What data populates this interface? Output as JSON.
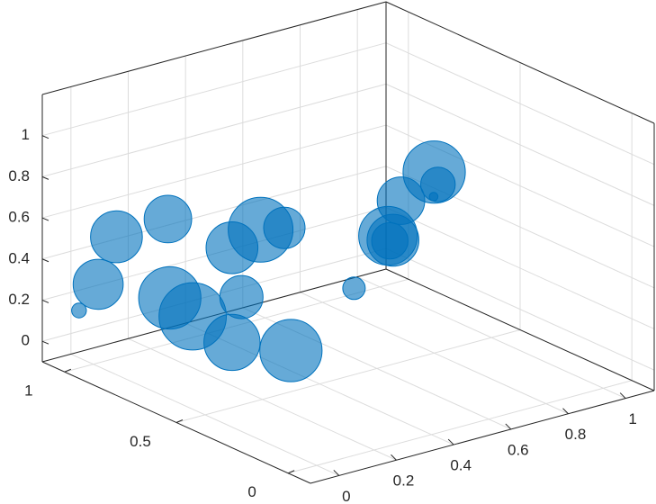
{
  "chart_data": {
    "type": "scatter",
    "style": "3d-bubble",
    "color": "#0072BD",
    "fill_opacity": 0.6,
    "grid": true,
    "xlim": [
      -0.1,
      1.1
    ],
    "ylim": [
      -0.1,
      1.1
    ],
    "zlim": [
      -0.1,
      1.2
    ],
    "x_ticks": [
      {
        "value": 0,
        "label": "0"
      },
      {
        "value": 0.2,
        "label": "0.2"
      },
      {
        "value": 0.4,
        "label": "0.4"
      },
      {
        "value": 0.6,
        "label": "0.6"
      },
      {
        "value": 0.8,
        "label": "0.8"
      },
      {
        "value": 1,
        "label": "1"
      }
    ],
    "y_ticks": [
      {
        "value": 0,
        "label": "0"
      },
      {
        "value": 0.5,
        "label": "0.5"
      },
      {
        "value": 1,
        "label": "1"
      }
    ],
    "z_ticks": [
      {
        "value": 0,
        "label": "0"
      },
      {
        "value": 0.2,
        "label": "0.2"
      },
      {
        "value": 0.4,
        "label": "0.4"
      },
      {
        "value": 0.6,
        "label": "0.6"
      },
      {
        "value": 0.8,
        "label": "0.8"
      },
      {
        "value": 1,
        "label": "1"
      }
    ],
    "points": [
      {
        "x": 0.45,
        "y": 0.2,
        "z": 0.92,
        "size": 0.55
      },
      {
        "x": 0.54,
        "y": 0.15,
        "z": 0.99,
        "size": 0.4
      },
      {
        "x": 0.8,
        "y": 0.5,
        "z": 0.78,
        "size": 0.72
      },
      {
        "x": 0.5,
        "y": 0.3,
        "z": 0.66,
        "size": 0.6
      },
      {
        "x": 0.72,
        "y": 0.4,
        "z": 0.74,
        "size": 0.1
      },
      {
        "x": 0.6,
        "y": 0.45,
        "z": 0.57,
        "size": 0.68
      },
      {
        "x": 0.45,
        "y": 0.25,
        "z": 0.7,
        "size": 0.42
      },
      {
        "x": 0.52,
        "y": 0.5,
        "z": 0.32,
        "size": 0.26
      },
      {
        "x": 0.05,
        "y": 0.73,
        "z": 0.72,
        "size": 0.55
      },
      {
        "x": 0.35,
        "y": 0.7,
        "z": 0.57,
        "size": 0.75
      },
      {
        "x": 0.25,
        "y": 0.7,
        "z": 0.52,
        "size": 0.6
      },
      {
        "x": 0.55,
        "y": 0.85,
        "z": 0.43,
        "size": 0.48
      },
      {
        "x": 0.15,
        "y": 0.85,
        "z": 0.24,
        "size": 0.72
      },
      {
        "x": 0.4,
        "y": 0.85,
        "z": 0.15,
        "size": 0.5
      },
      {
        "x": 0.12,
        "y": 1.05,
        "z": 0.45,
        "size": 0.6
      },
      {
        "x": -0.1,
        "y": 0.85,
        "z": 0.4,
        "size": 0.58
      },
      {
        "x": -0.05,
        "y": 1.0,
        "z": 0.18,
        "size": 0.17
      },
      {
        "x": 0.23,
        "y": 0.85,
        "z": 0.12,
        "size": 0.78
      },
      {
        "x": 0.25,
        "y": 0.7,
        "z": 0.06,
        "size": 0.65
      },
      {
        "x": 0.3,
        "y": 0.5,
        "z": 0.1,
        "size": 0.72
      }
    ]
  }
}
